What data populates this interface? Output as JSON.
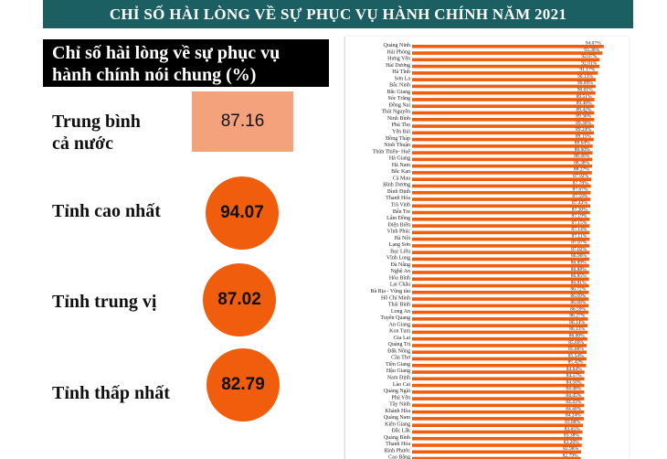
{
  "header": {
    "title": "CHỈ SỐ HÀI LÒNG VỀ SỰ PHỤC VỤ HÀNH CHÍNH NĂM 2021"
  },
  "summary": {
    "title_line1": "Chỉ số hài lòng về sự phục vụ",
    "title_line2": "hành chính nói chung (%)",
    "average_label_line1": "Trung bình",
    "average_label_line2": "cả nước",
    "average_value": "87.16",
    "highest_label": "Tỉnh cao nhất",
    "highest_value": "94.07",
    "median_label": "Tỉnh trung vị",
    "median_value": "87.02",
    "lowest_label": "Tỉnh thấp nhất",
    "lowest_value": "82.79"
  },
  "colors": {
    "header_bg": "#1c5f63",
    "bar": "#ef5d0d",
    "average_box": "#f4a27c",
    "circle": "#ef5d0d"
  },
  "chart_data": {
    "type": "bar",
    "orientation": "horizontal",
    "unit": "%",
    "categories": [
      "Quảng Ninh",
      "Hải Phòng",
      "Hưng Yên",
      "Hải Dương",
      "Hà Tĩnh",
      "Sơn La",
      "Bắc Ninh",
      "Bắc Giang",
      "Sóc Trăng",
      "Đồng Nai",
      "Thái Nguyên",
      "Ninh Bình",
      "Phú Thọ",
      "Yên Bái",
      "Đồng Tháp",
      "Ninh Thuận",
      "Thừa Thiên- Huế",
      "Hà Giang",
      "Hà Nam",
      "Bắc Kạn",
      "Cà Mau",
      "Bình Dương",
      "Bình Định",
      "Thanh Hóa",
      "Trà Vinh",
      "Bến Tre",
      "Lâm Đồng",
      "Điện Biên",
      "Vĩnh Phúc",
      "Hà Nội",
      "Lạng Sơn",
      "Bạc Liêu",
      "Vĩnh Long",
      "Đà Nẵng",
      "Nghệ An",
      "Hòa Bình",
      "Lai Châu",
      "Bà Rịa - Vũng tàu",
      "Hồ Chí Minh",
      "Thái Bình",
      "Long An",
      "Tuyên Quang",
      "An Giang",
      "Kon Tum",
      "Gia Lai",
      "Quảng Trị",
      "Đắk Nông",
      "Cần Thơ",
      "Tiền Giang",
      "Hậu Giang",
      "Nam Định",
      "Lào Cai",
      "Quảng Ngãi",
      "Phú Yên",
      "Tây Ninh",
      "Khánh Hòa",
      "Quảng Nam",
      "Kiên Giang",
      "Đắc Lắk",
      "Quảng Bình",
      "Thanh Hóa",
      "Bình Phước",
      "Cao Bằng"
    ],
    "values": [
      94.07,
      93.38,
      92.07,
      92.01,
      91.17,
      90.13,
      90.09,
      90.01,
      89.51,
      89.48,
      89.42,
      89.36,
      89.3,
      89.24,
      89.15,
      88.64,
      88.6,
      88.46,
      88.38,
      88.27,
      87.92,
      87.78,
      87.67,
      87.59,
      87.43,
      87.3,
      87.19,
      87.15,
      87.14,
      87.11,
      87.07,
      87.02,
      86.96,
      86.89,
      86.88,
      86.85,
      86.81,
      86.72,
      86.69,
      86.68,
      86.59,
      86.27,
      86.14,
      86.13,
      86.0,
      85.69,
      85.66,
      85.54,
      85.42,
      84.64,
      84.57,
      84.5,
      84.48,
      84.45,
      84.43,
      84.4,
      84.24,
      83.88,
      83.65,
      83.38,
      83.26,
      82.98,
      82.79
    ],
    "value_labels": [
      "94.07%",
      "93.38%",
      "92.07%",
      "92.01%",
      "91.17%",
      "90.13%",
      "90.09%",
      "90.01%",
      "89.51%",
      "89.48%",
      "89.42%",
      "89.36%",
      "89.30%",
      "89.24%",
      "89.15%",
      "88.64%",
      "88.60%",
      "88.46%",
      "88.38%",
      "88.27%",
      "87.92%",
      "87.78%",
      "87.67%",
      "87.59%",
      "87.43%",
      "87.30%",
      "87.19%",
      "87.15%",
      "87.14%",
      "87.11%",
      "87.07%",
      "87.02%",
      "86.96%",
      "86.89%",
      "86.88%",
      "86.85%",
      "86.81%",
      "86.72%",
      "86.69%",
      "86.68%",
      "86.59%",
      "86.27%",
      "86.14%",
      "86.13%",
      "86.00%",
      "85.69%",
      "85.66%",
      "85.54%",
      "85.42%",
      "84.64%",
      "84.57%",
      "84.50%",
      "84.48%",
      "84.45%",
      "84.43%",
      "84.40%",
      "84.24%",
      "83.88%",
      "83.65%",
      "83.38%",
      "83.26%",
      "82.98%",
      "82.79%"
    ],
    "xlim": [
      0,
      100
    ]
  }
}
